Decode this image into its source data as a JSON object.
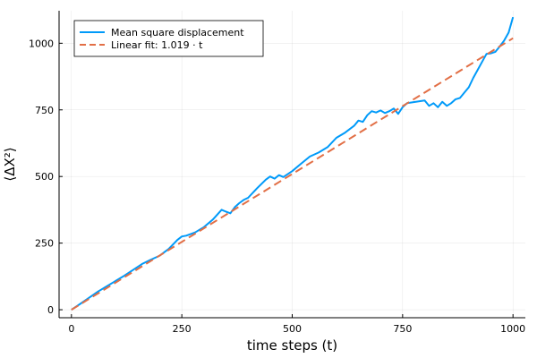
{
  "chart_data": {
    "type": "line",
    "title": "",
    "xlabel": "time steps (t)",
    "ylabel": "⟨ΔX²⟩",
    "xlim": [
      -28,
      1028
    ],
    "ylim": [
      -30,
      1122
    ],
    "x_ticks": [
      0,
      250,
      500,
      750,
      1000
    ],
    "x_tick_labels": [
      "0",
      "250",
      "500",
      "750",
      "1000"
    ],
    "y_ticks": [
      0,
      250,
      500,
      750,
      1000
    ],
    "y_tick_labels": [
      "0",
      "250",
      "500",
      "750",
      "1000"
    ],
    "grid": true,
    "legend_position": "top-left",
    "series": [
      {
        "name": "Mean square displacement",
        "color": "#009af9",
        "style": "solid",
        "x": [
          0,
          20,
          40,
          60,
          80,
          100,
          120,
          140,
          160,
          180,
          200,
          220,
          240,
          250,
          260,
          280,
          300,
          320,
          340,
          350,
          360,
          370,
          380,
          390,
          400,
          420,
          440,
          450,
          460,
          470,
          480,
          500,
          520,
          540,
          560,
          580,
          600,
          620,
          640,
          650,
          660,
          670,
          680,
          690,
          700,
          710,
          720,
          730,
          740,
          750,
          760,
          780,
          800,
          810,
          820,
          830,
          840,
          850,
          860,
          870,
          880,
          890,
          900,
          910,
          920,
          930,
          940,
          950,
          960,
          970,
          980,
          990,
          1000
        ],
        "y": [
          0,
          22,
          45,
          68,
          88,
          108,
          128,
          150,
          172,
          188,
          203,
          228,
          262,
          275,
          278,
          290,
          310,
          338,
          375,
          368,
          362,
          385,
          400,
          412,
          420,
          455,
          488,
          500,
          492,
          505,
          498,
          520,
          548,
          575,
          590,
          610,
          645,
          665,
          690,
          710,
          705,
          730,
          745,
          740,
          748,
          738,
          745,
          755,
          735,
          760,
          775,
          780,
          785,
          765,
          775,
          760,
          780,
          765,
          775,
          790,
          795,
          815,
          835,
          870,
          900,
          930,
          960,
          962,
          968,
          988,
          1010,
          1040,
          1098
        ]
      },
      {
        "name": "Linear fit: 1.019 · t",
        "color": "#e26f46",
        "style": "dashed",
        "x": [
          0,
          1000
        ],
        "y": [
          0,
          1019
        ]
      }
    ]
  }
}
